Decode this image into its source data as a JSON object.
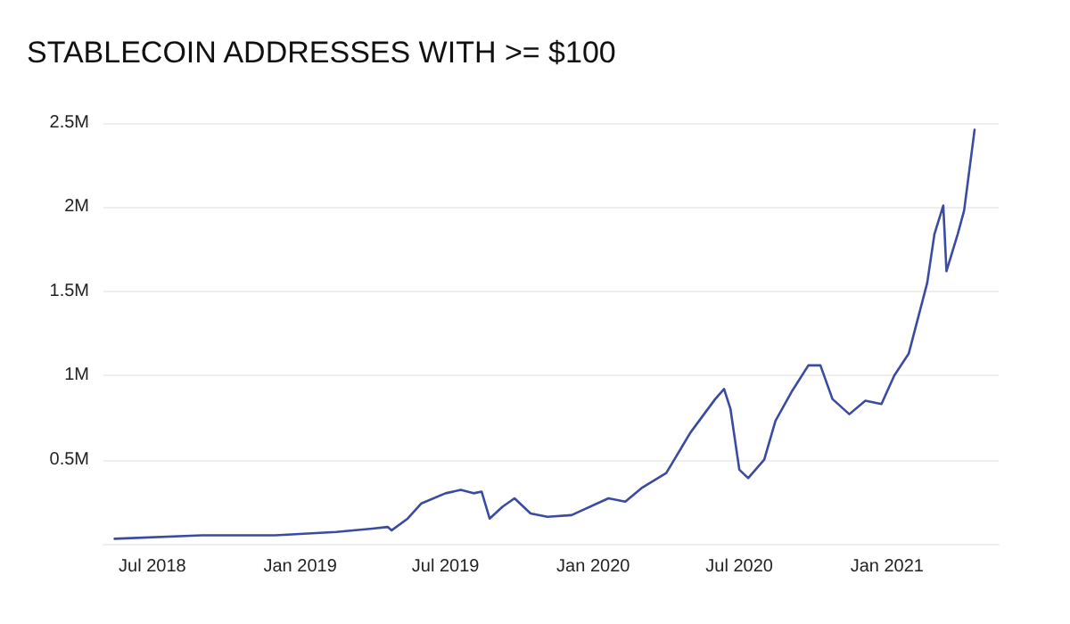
{
  "chart_data": {
    "type": "line",
    "title": "STABLECOIN ADDRESSES WITH >= $100",
    "x": [
      "2018-05-15",
      "2018-09-01",
      "2018-12-01",
      "2019-02-15",
      "2019-04-01",
      "2019-04-20",
      "2019-04-25",
      "2019-05-15",
      "2019-06-01",
      "2019-07-01",
      "2019-07-20",
      "2019-08-05",
      "2019-08-15",
      "2019-08-25",
      "2019-09-10",
      "2019-09-25",
      "2019-10-15",
      "2019-11-05",
      "2019-12-05",
      "2020-01-20",
      "2020-02-10",
      "2020-03-01",
      "2020-04-01",
      "2020-05-01",
      "2020-06-01",
      "2020-06-12",
      "2020-06-20",
      "2020-07-01",
      "2020-07-12",
      "2020-08-01",
      "2020-08-15",
      "2020-09-05",
      "2020-09-25",
      "2020-10-10",
      "2020-10-25",
      "2020-11-15",
      "2020-12-05",
      "2020-12-25",
      "2021-01-10",
      "2021-01-28",
      "2021-02-20",
      "2021-03-01",
      "2021-03-12",
      "2021-03-16",
      "2021-03-30",
      "2021-04-07",
      "2021-04-20"
    ],
    "series": [
      {
        "color": "#3a4ba0",
        "values": [
          30000,
          50000,
          50000,
          70000,
          90000,
          100000,
          80000,
          150000,
          240000,
          300000,
          320000,
          300000,
          310000,
          150000,
          220000,
          270000,
          180000,
          160000,
          170000,
          270000,
          250000,
          330000,
          420000,
          660000,
          860000,
          920000,
          800000,
          440000,
          390000,
          500000,
          730000,
          910000,
          1060000,
          1060000,
          860000,
          770000,
          850000,
          830000,
          1000000,
          1130000,
          1550000,
          1840000,
          2010000,
          1620000,
          1840000,
          1980000,
          2460000
        ]
      }
    ],
    "xlim": [
      "2018-05-01",
      "2021-05-20"
    ],
    "xticks": [
      {
        "value": "2018-07-01",
        "label": "Jul 2018"
      },
      {
        "value": "2019-01-01",
        "label": "Jan 2019"
      },
      {
        "value": "2019-07-01",
        "label": "Jul 2019"
      },
      {
        "value": "2020-01-01",
        "label": "Jan 2020"
      },
      {
        "value": "2020-07-01",
        "label": "Jul 2020"
      },
      {
        "value": "2021-01-01",
        "label": "Jan 2021"
      }
    ],
    "ylim": [
      0,
      2500000
    ],
    "yticks": [
      {
        "value": 500000,
        "label": "0.5M"
      },
      {
        "value": 1000000,
        "label": "1M"
      },
      {
        "value": 1500000,
        "label": "1.5M"
      },
      {
        "value": 2000000,
        "label": "2M"
      },
      {
        "value": 2500000,
        "label": "2.5M"
      }
    ],
    "grid": "y",
    "marker": "none",
    "line_style": "solid"
  }
}
